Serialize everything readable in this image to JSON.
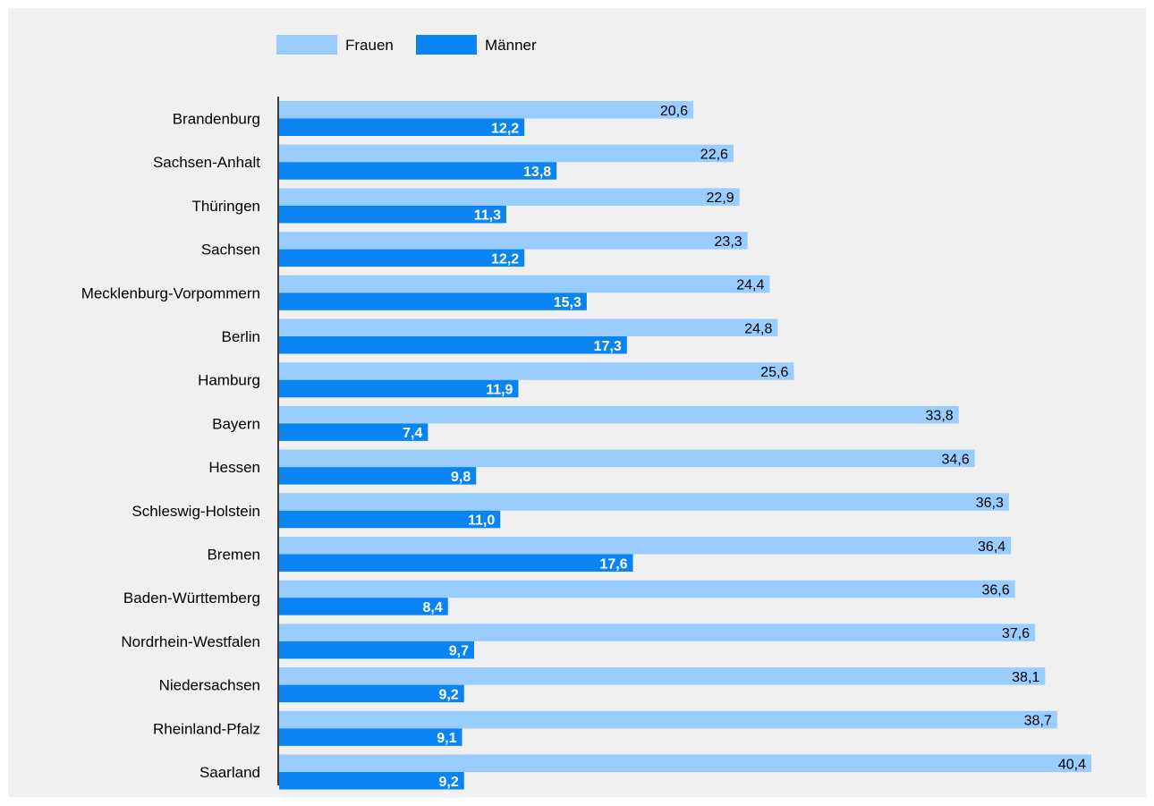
{
  "chart_data": {
    "type": "bar",
    "orientation": "horizontal",
    "legend": {
      "placement": "top-left",
      "entries": [
        "Frauen",
        "Männer"
      ]
    },
    "categories": [
      "Brandenburg",
      "Sachsen-Anhalt",
      "Thüringen",
      "Sachsen",
      "Mecklenburg-Vorpommern",
      "Berlin",
      "Hamburg",
      "Bayern",
      "Hessen",
      "Schleswig-Holstein",
      "Bremen",
      "Baden-Württemberg",
      "Nordrhein-Westfalen",
      "Niedersachsen",
      "Rheinland-Pfalz",
      "Saarland"
    ],
    "series": [
      {
        "name": "Frauen",
        "color": "#99ccff",
        "values": [
          20.6,
          22.6,
          22.9,
          23.3,
          24.4,
          24.8,
          25.6,
          33.8,
          34.6,
          36.3,
          36.4,
          36.6,
          37.6,
          38.1,
          38.7,
          40.4
        ],
        "labels": [
          "20,6",
          "22,6",
          "22,9",
          "23,3",
          "24,4",
          "24,8",
          "25,6",
          "33,8",
          "34,6",
          "36,3",
          "36,4",
          "36,6",
          "37,6",
          "38,1",
          "38,7",
          "40,4"
        ]
      },
      {
        "name": "Männer",
        "color": "#0a84f2",
        "values": [
          12.2,
          13.8,
          11.3,
          12.2,
          15.3,
          17.3,
          11.9,
          7.4,
          9.8,
          11.0,
          17.6,
          8.4,
          9.7,
          9.2,
          9.1,
          9.2
        ],
        "labels": [
          "12,2",
          "13,8",
          "11,3",
          "12,2",
          "15,3",
          "17,3",
          "11,9",
          "7,4",
          "9,8",
          "11,0",
          "17,6",
          "8,4",
          "9,7",
          "9,2",
          "9,1",
          "9,2"
        ]
      }
    ],
    "xlim": [
      0,
      40.4
    ],
    "grid": false,
    "background": "#f0f0f0"
  }
}
